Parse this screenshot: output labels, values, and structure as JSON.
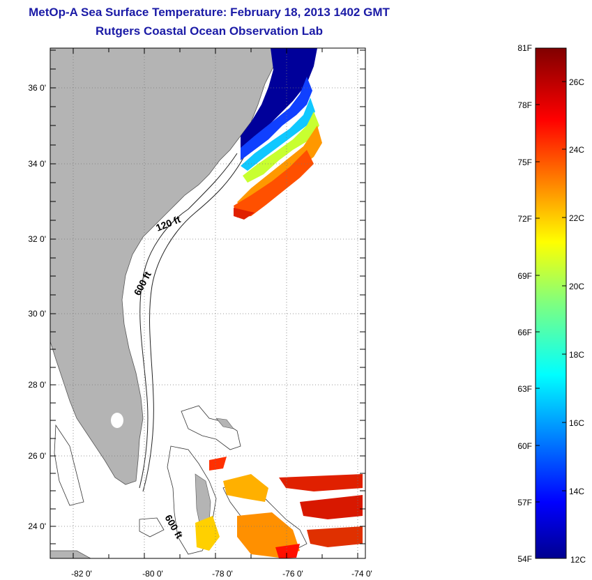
{
  "header": {
    "title": "MetOp-A Sea Surface Temperature:  February 18, 2013 1402 GMT",
    "subtitle": "Rutgers Coastal Ocean Observation Lab"
  },
  "map": {
    "lon_ticks": [
      "-82 0'",
      "-80 0'",
      "-78 0'",
      "-76 0'",
      "-74 0'"
    ],
    "lat_ticks": [
      "36 0'",
      "34 0'",
      "32 0'",
      "30 0'",
      "28 0'",
      "26 0'",
      "24 0'"
    ],
    "contour_labels": {
      "shelf_120": "120 ft",
      "shelf_600_north": "600 ft",
      "shelf_600_south": "600 ft"
    },
    "colors": {
      "land": "#b4b4b4",
      "ocean": "#ffffff",
      "cold": "#00008f",
      "warm": "#e03000"
    }
  },
  "colorbar": {
    "fahrenheit_labels": [
      "81F",
      "78F",
      "75F",
      "72F",
      "69F",
      "66F",
      "63F",
      "60F",
      "57F",
      "54F"
    ],
    "celsius_labels": [
      "26C",
      "24C",
      "22C",
      "20C",
      "18C",
      "16C",
      "14C",
      "12C"
    ],
    "range_f": [
      54,
      81
    ],
    "range_c": [
      12,
      27.2
    ],
    "colormap": "jet"
  }
}
